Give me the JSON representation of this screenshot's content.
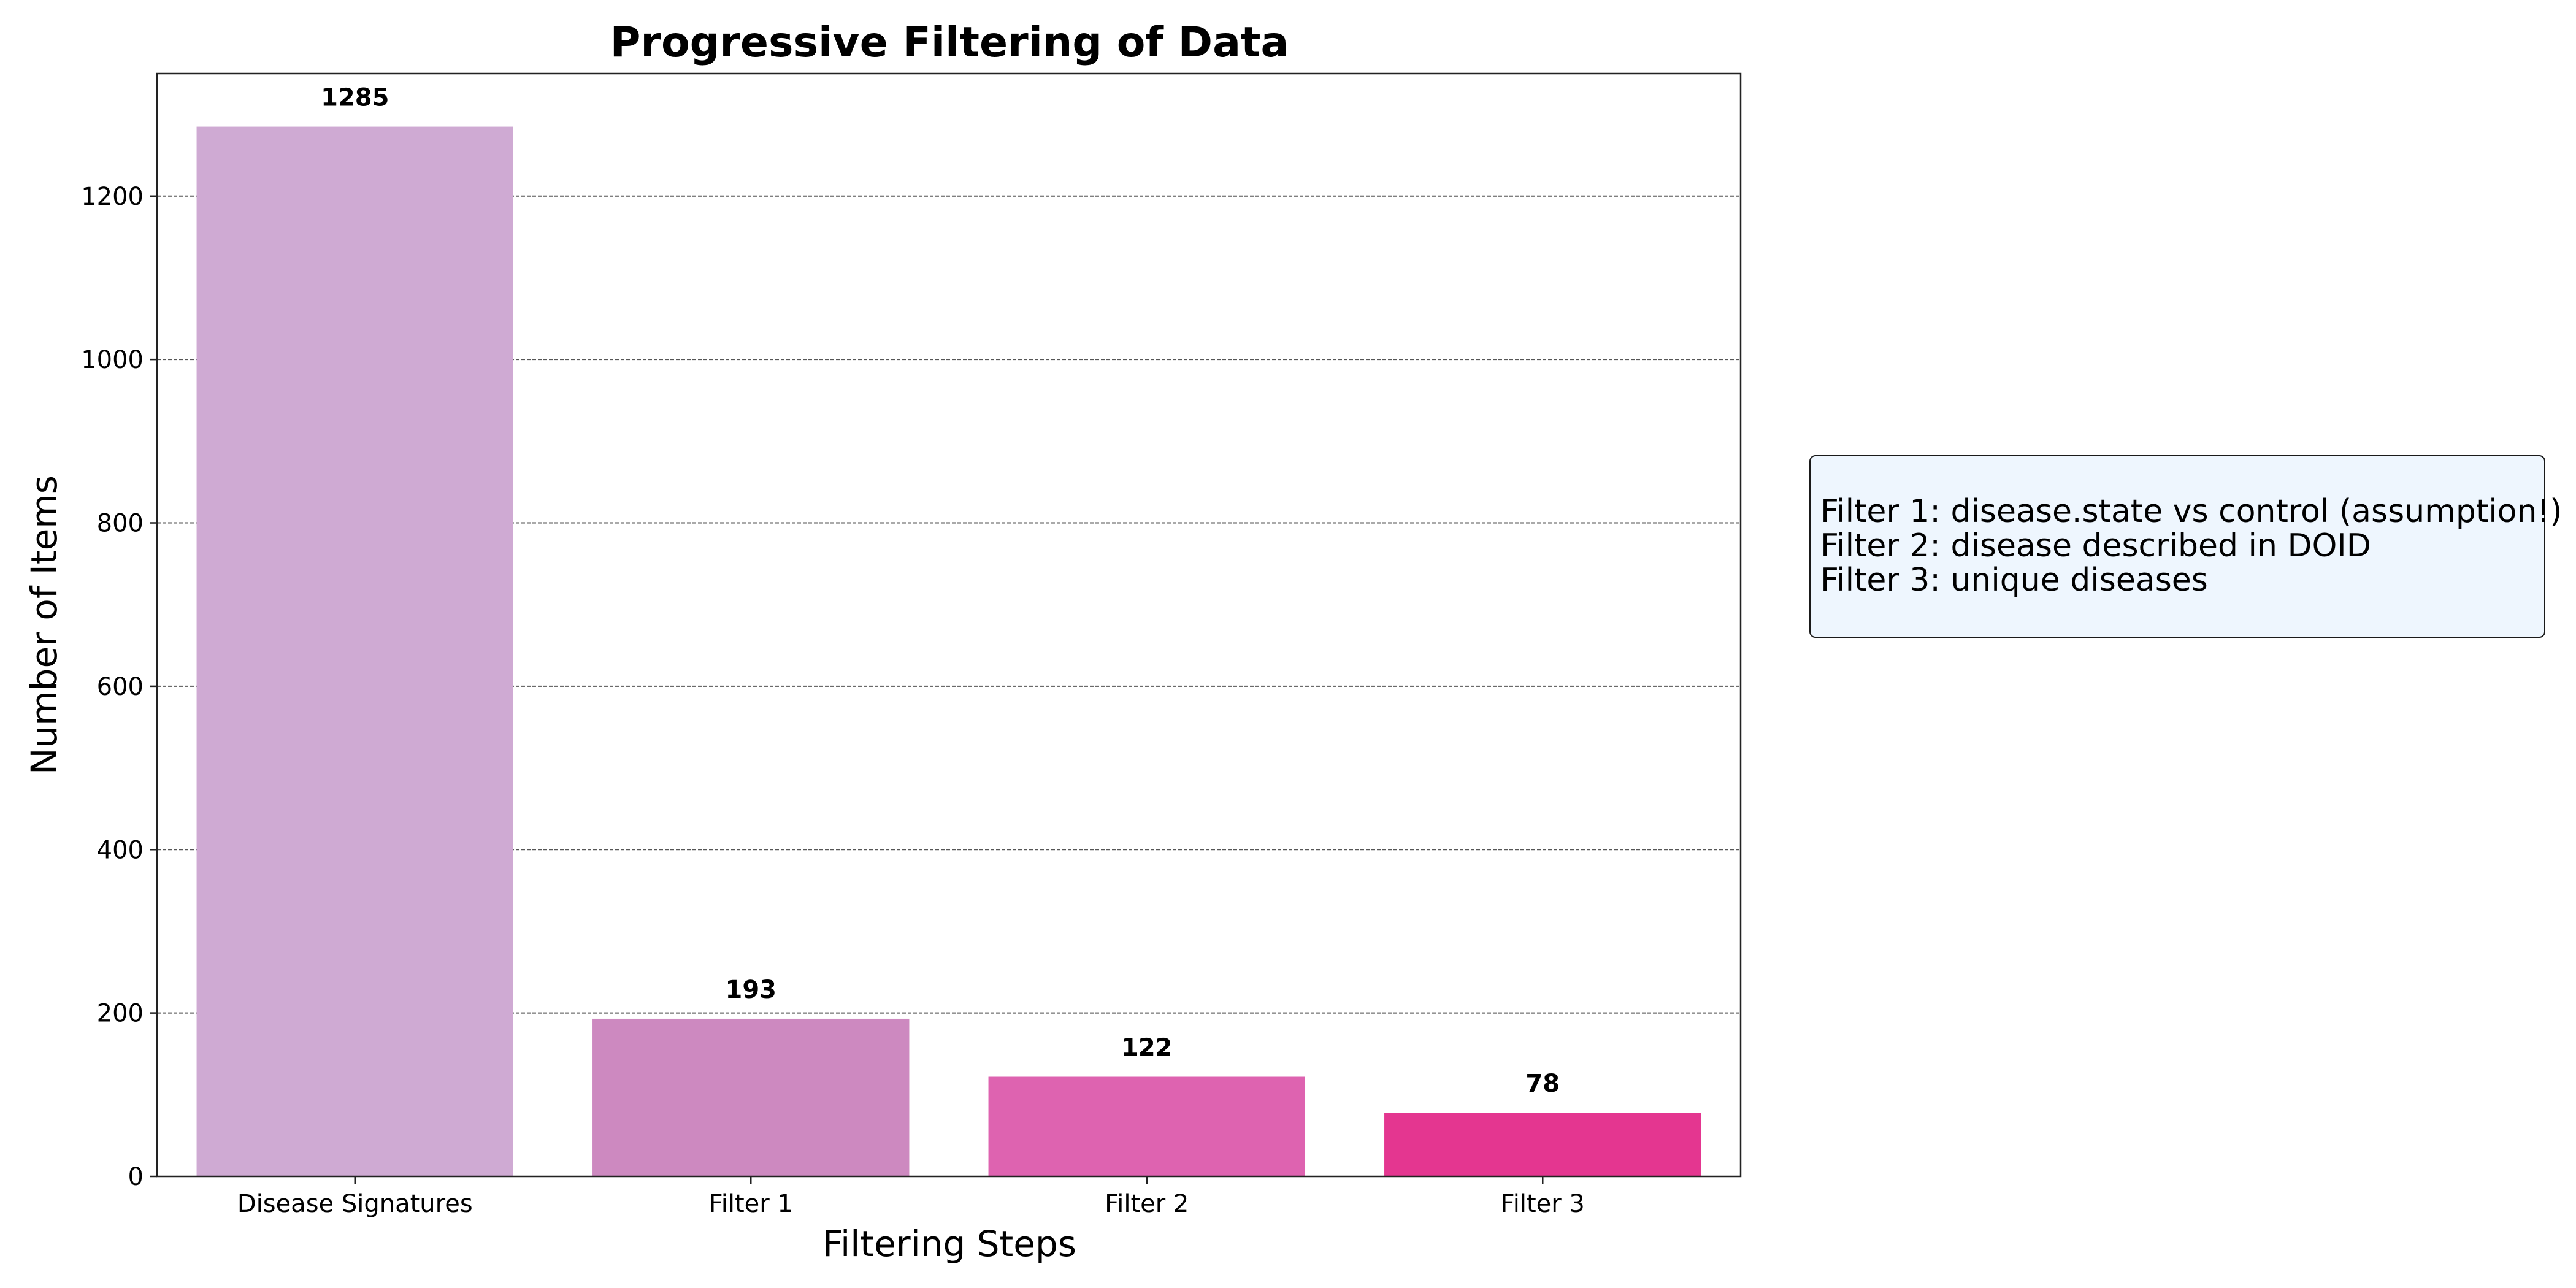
{
  "chart_data": {
    "type": "bar",
    "title": "Progressive Filtering of Data",
    "xlabel": "Filtering Steps",
    "ylabel": "Number of Items",
    "categories": [
      "Disease Signatures",
      "Filter 1",
      "Filter 2",
      "Filter 3"
    ],
    "values": [
      1285,
      193,
      122,
      78
    ],
    "colors": [
      "#cfaad3",
      "#cd89c0",
      "#de63b0",
      "#e43690"
    ],
    "ylim": [
      0,
      1350
    ],
    "yticks": [
      0,
      200,
      400,
      600,
      800,
      1000,
      1200
    ],
    "grid": "horizontal-dashed",
    "annotation": {
      "lines": [
        "Filter 1: disease.state vs control (assumption!)",
        "Filter 2: disease described in DOID",
        "Filter 3: unique diseases"
      ],
      "background": "#eef6fe",
      "placement": "right"
    }
  }
}
